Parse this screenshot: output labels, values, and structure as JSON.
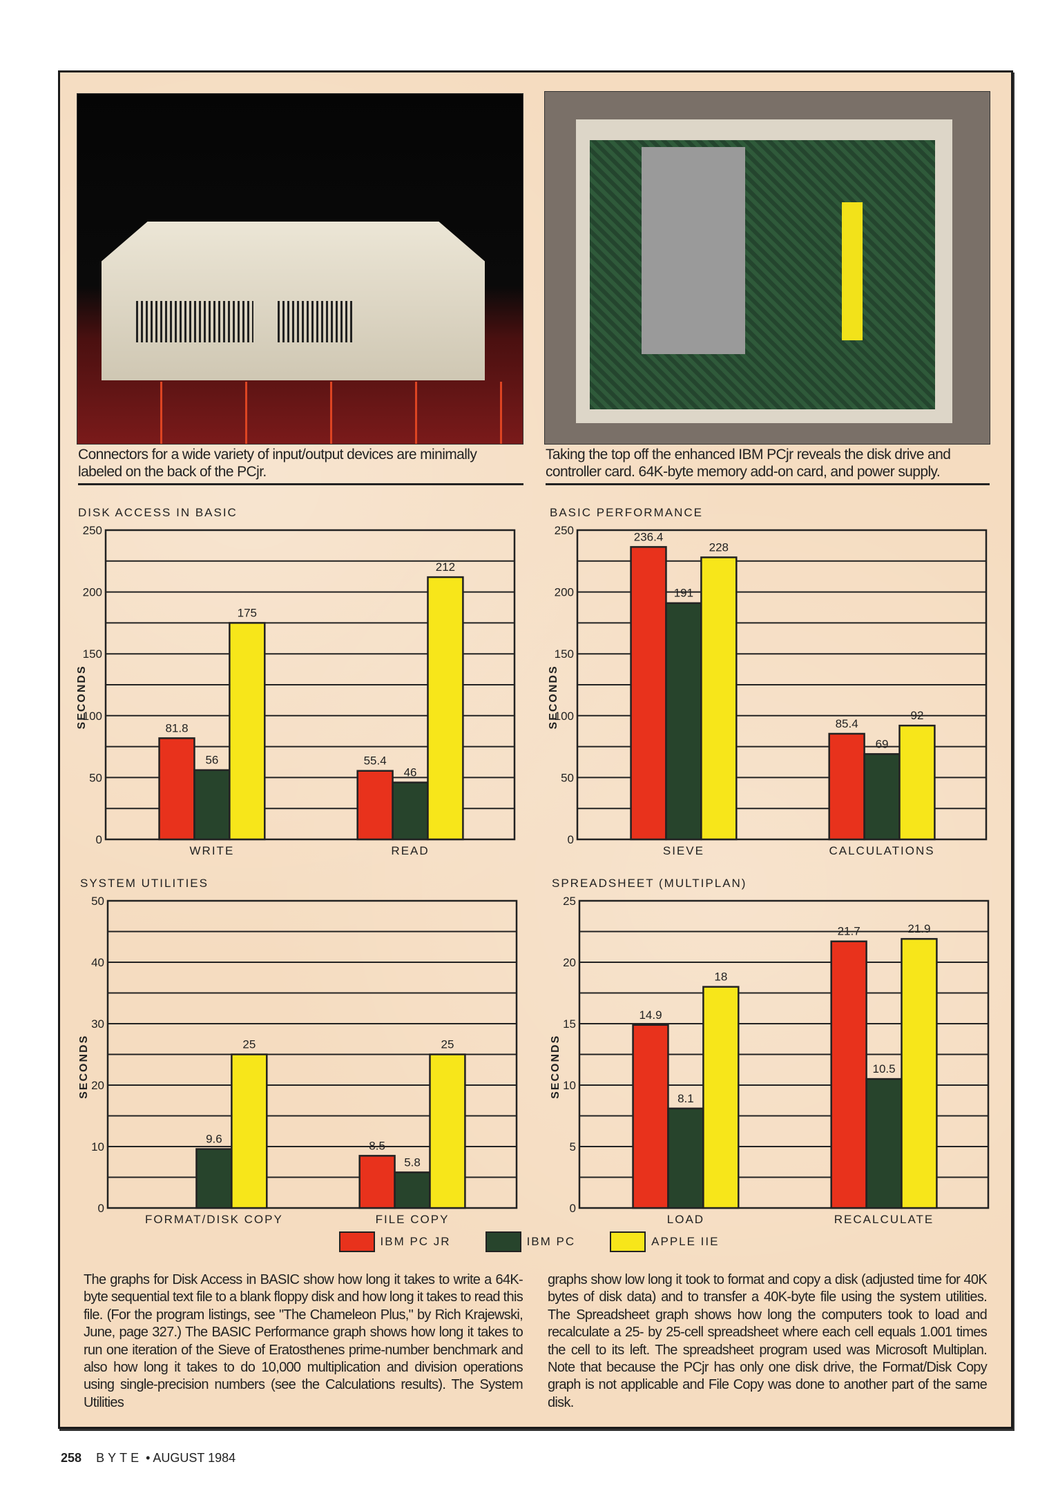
{
  "captions": {
    "left": "Connectors for a wide variety of input/output devices are minimally labeled on the back of the PCjr.",
    "right": "Taking the top off the enhanced IBM PCjr reveals the disk drive and controller card. 64K-byte memory add-on card, and power supply."
  },
  "legend": [
    {
      "label": "IBM PC JR",
      "color": "#e8321c"
    },
    {
      "label": "IBM PC",
      "color": "#27442c"
    },
    {
      "label": "APPLE IIE",
      "color": "#f7e61a"
    }
  ],
  "chart_data": [
    {
      "type": "bar",
      "title": "DISK ACCESS IN BASIC",
      "ylabel": "SECONDS",
      "ylim": [
        0,
        250
      ],
      "yticks": [
        0,
        50,
        100,
        150,
        200,
        250
      ],
      "grid": true,
      "categories": [
        "WRITE",
        "READ"
      ],
      "series": [
        {
          "name": "IBM PC JR",
          "values": [
            81.8,
            55.4
          ]
        },
        {
          "name": "IBM PC",
          "values": [
            56,
            46
          ]
        },
        {
          "name": "APPLE IIE",
          "values": [
            175,
            212
          ]
        }
      ]
    },
    {
      "type": "bar",
      "title": "BASIC PERFORMANCE",
      "ylabel": "SECONDS",
      "ylim": [
        0,
        250
      ],
      "yticks": [
        0,
        50,
        100,
        150,
        200,
        250
      ],
      "grid": true,
      "categories": [
        "SIEVE",
        "CALCULATIONS"
      ],
      "series": [
        {
          "name": "IBM PC JR",
          "values": [
            236.4,
            85.4
          ]
        },
        {
          "name": "IBM PC",
          "values": [
            191,
            69
          ]
        },
        {
          "name": "APPLE IIE",
          "values": [
            228,
            92
          ]
        }
      ]
    },
    {
      "type": "bar",
      "title": "SYSTEM UTILITIES",
      "ylabel": "SECONDS",
      "ylim": [
        0,
        50
      ],
      "yticks": [
        0,
        10,
        20,
        30,
        40,
        50
      ],
      "grid": true,
      "categories": [
        "FORMAT/DISK COPY",
        "FILE COPY"
      ],
      "series": [
        {
          "name": "IBM PC JR",
          "values": [
            null,
            8.5
          ]
        },
        {
          "name": "IBM PC",
          "values": [
            9.6,
            5.8
          ]
        },
        {
          "name": "APPLE IIE",
          "values": [
            25,
            25
          ]
        }
      ]
    },
    {
      "type": "bar",
      "title": "SPREADSHEET (MULTIPLAN)",
      "ylabel": "SECONDS",
      "ylim": [
        0,
        25
      ],
      "yticks": [
        0,
        5,
        10,
        15,
        20,
        25
      ],
      "grid": true,
      "categories": [
        "LOAD",
        "RECALCULATE"
      ],
      "series": [
        {
          "name": "IBM PC JR",
          "values": [
            14.9,
            21.7
          ]
        },
        {
          "name": "IBM PC",
          "values": [
            8.1,
            10.5
          ]
        },
        {
          "name": "APPLE IIE",
          "values": [
            18,
            21.9
          ]
        }
      ]
    }
  ],
  "body": {
    "left": "The graphs for Disk Access in BASIC show how long it takes to write a 64K-byte sequential text file to a blank floppy disk and how long it takes to read this file. (For the program listings, see \"The Chameleon Plus,\" by Rich Krajewski, June, page 327.) The BASIC Performance graph shows how long it takes to run one iteration of the Sieve of Eratosthenes prime-number benchmark and also how long it takes to do 10,000 multiplication and division operations using single-precision numbers (see the Calculations results). The System Utilities",
    "right": "graphs show low long it took to format and copy a disk (adjusted time for 40K bytes of disk data) and to transfer a 40K-byte file using the system utilities. The Spreadsheet graph shows how long the computers took to load and recalculate a 25- by 25-cell spreadsheet where each cell equals 1.001 times the cell to its left. The spreadsheet program used was Microsoft Multiplan. Note that because the PCjr has only one disk drive, the Format/Disk Copy graph is not applicable and File Copy was done to another part of the same disk."
  },
  "footer": {
    "page": "258",
    "magazine": "BYTE",
    "separator": "•",
    "issue": "AUGUST 1984"
  }
}
